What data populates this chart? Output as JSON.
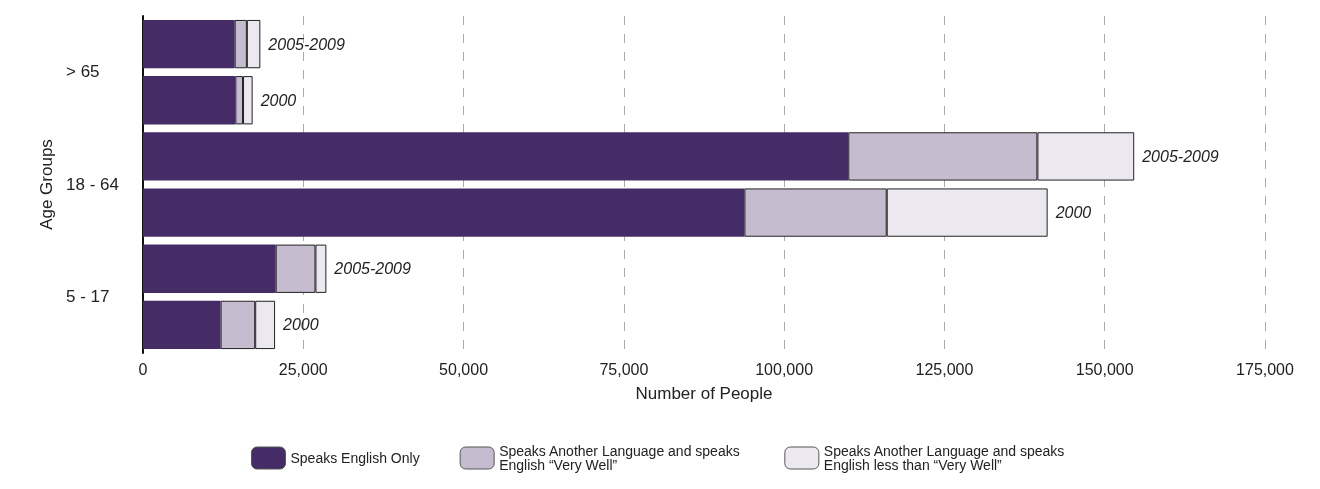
{
  "chart_data": {
    "type": "bar",
    "orientation": "horizontal",
    "stacked": true,
    "xlabel": "Number of People",
    "ylabel": "Age Groups",
    "categories": [
      "2005-2009",
      "2000",
      "2005-2009",
      "2000",
      "2005-2009",
      "2000"
    ],
    "annotations": [
      "> 65",
      "18 - 64",
      "5 - 17"
    ],
    "series": [
      {
        "name": "Speaks English Only",
        "color": "#452c66",
        "values": [
          14300,
          14400,
          110000,
          93800,
          20700,
          12100
        ]
      },
      {
        "name": "Speaks Another Language and speaks English “Very Well”",
        "color": "#c6bccf",
        "values": [
          1900,
          1200,
          29500,
          22200,
          6200,
          5400
        ]
      },
      {
        "name": "Speaks Another Language and speaks English less than “Very Well”",
        "color": "#ebe9ef",
        "values": [
          2100,
          1500,
          15100,
          25100,
          1700,
          3100
        ]
      }
    ],
    "xlim": [
      0,
      175000
    ],
    "xticks": [
      0,
      {
        "value": 25000,
        "label": "25,000"
      },
      {
        "value": 50000,
        "label": "50,000"
      },
      {
        "value": 75000,
        "label": "75,000"
      },
      {
        "value": 100000,
        "label": "100,000"
      },
      {
        "value": 125000,
        "label": "125,000"
      },
      {
        "value": 150000,
        "label": "150,000"
      },
      {
        "value": 175000,
        "label": "175,000"
      }
    ],
    "grid": "x",
    "legend": "bottom"
  }
}
